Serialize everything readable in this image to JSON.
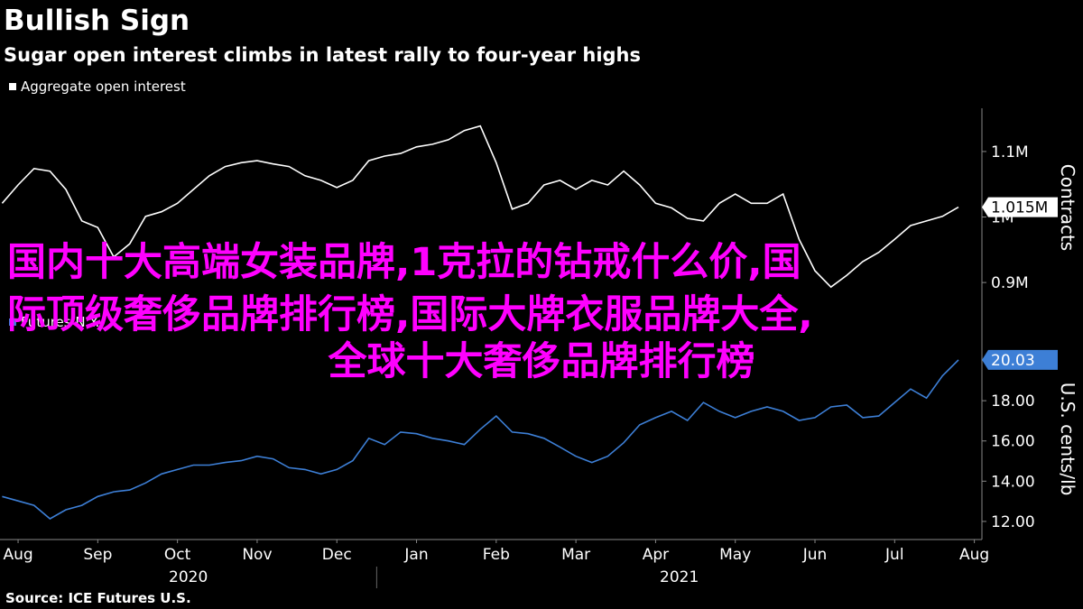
{
  "title": "Bullish Sign",
  "subtitle": "Sugar open interest climbs in latest rally to four-year highs",
  "source": "Source: ICE Futures U.S.",
  "overlay_text": [
    "国内十大高端女装品牌,1克拉的钻戒什么价,国",
    "际顶级奢侈品牌排行榜,国际大牌衣服品牌大全,",
    "全球十大奢侈品牌排行榜"
  ],
  "chart_data": [
    {
      "type": "line",
      "y_axis_label": "Contracts",
      "x": [
        -0.2,
        0,
        0.2,
        0.4,
        0.6,
        0.8,
        1,
        1.2,
        1.4,
        1.6,
        1.8,
        2,
        2.2,
        2.4,
        2.6,
        2.8,
        3,
        3.2,
        3.4,
        3.6,
        3.8,
        4,
        4.2,
        4.4,
        4.6,
        4.8,
        5,
        5.2,
        5.4,
        5.6,
        5.8,
        6,
        6.2,
        6.4,
        6.6,
        6.8,
        7,
        7.2,
        7.4,
        7.6,
        7.8,
        8,
        8.2,
        8.4,
        8.6,
        8.8,
        9,
        9.2,
        9.4,
        9.6,
        9.8,
        10,
        10.2,
        10.4,
        10.6,
        10.8,
        11,
        11.2,
        11.4,
        11.6,
        11.8
      ],
      "xlim": [
        -0.227,
        12.095
      ],
      "ylim": [
        863000,
        1166000
      ],
      "yticks": [
        {
          "value": 900000,
          "label": "0.9M"
        },
        {
          "value": 1000000,
          "label": "1M"
        },
        {
          "value": 1100000,
          "label": "1.1M"
        }
      ],
      "series": [
        {
          "name": "Aggregate open interest",
          "color": "#ffffff",
          "last_value_label": "1.015M",
          "values": [
            1021000,
            1049000,
            1074000,
            1070000,
            1042000,
            994000,
            984000,
            939000,
            959000,
            1001000,
            1008000,
            1021000,
            1042000,
            1063000,
            1077000,
            1083000,
            1086000,
            1081000,
            1077000,
            1063000,
            1056000,
            1045000,
            1056000,
            1086000,
            1093000,
            1097000,
            1107000,
            1111000,
            1118000,
            1132000,
            1139000,
            1083000,
            1012000,
            1021000,
            1049000,
            1056000,
            1042000,
            1056000,
            1049000,
            1070000,
            1049000,
            1021000,
            1014000,
            998000,
            994000,
            1021000,
            1035000,
            1021000,
            1021000,
            1035000,
            966000,
            918000,
            893000,
            911000,
            932000,
            946000,
            966000,
            987000,
            994000,
            1001000,
            1015000
          ]
        }
      ]
    },
    {
      "type": "line",
      "y_axis_label": "U.S. cents/lb",
      "x": [
        -0.2,
        0,
        0.2,
        0.4,
        0.6,
        0.8,
        1,
        1.2,
        1.4,
        1.6,
        1.8,
        2,
        2.2,
        2.4,
        2.6,
        2.8,
        3,
        3.2,
        3.4,
        3.6,
        3.8,
        4,
        4.2,
        4.4,
        4.6,
        4.8,
        5,
        5.2,
        5.4,
        5.6,
        5.8,
        6,
        6.2,
        6.4,
        6.6,
        6.8,
        7,
        7.2,
        7.4,
        7.6,
        7.8,
        8,
        8.2,
        8.4,
        8.6,
        8.8,
        9,
        9.2,
        9.4,
        9.6,
        9.8,
        10,
        10.2,
        10.4,
        10.6,
        10.8,
        11,
        11.2,
        11.4,
        11.6,
        11.8
      ],
      "xlim": [
        -0.227,
        12.095
      ],
      "xticks": [
        {
          "value": 0,
          "label": "Aug"
        },
        {
          "value": 1,
          "label": "Sep"
        },
        {
          "value": 2,
          "label": "Oct"
        },
        {
          "value": 3,
          "label": "Nov"
        },
        {
          "value": 4,
          "label": "Dec"
        },
        {
          "value": 5,
          "label": "Jan"
        },
        {
          "value": 6,
          "label": "Feb"
        },
        {
          "value": 7,
          "label": "Mar"
        },
        {
          "value": 8,
          "label": "Apr"
        },
        {
          "value": 9,
          "label": "May"
        },
        {
          "value": 10,
          "label": "Jun"
        },
        {
          "value": 11,
          "label": "Jul"
        },
        {
          "value": 12,
          "label": "Aug"
        }
      ],
      "years": [
        "2020",
        "2021"
      ],
      "year_break": 4.5,
      "ylim": [
        11.1,
        21.1
      ],
      "yticks": [
        {
          "value": 12,
          "label": "12.00"
        },
        {
          "value": 14,
          "label": "14.00"
        },
        {
          "value": 16,
          "label": "16.00"
        },
        {
          "value": 18,
          "label": "18.00"
        },
        {
          "value": 20,
          "label": "20.00"
        }
      ],
      "series": [
        {
          "name": "Futures N.Y.",
          "color": "#3d7fd6",
          "last_value_label": "20.03",
          "values": [
            13.24,
            13.02,
            12.8,
            12.13,
            12.58,
            12.8,
            13.24,
            13.47,
            13.56,
            13.91,
            14.36,
            14.58,
            14.8,
            14.8,
            14.93,
            15.02,
            15.24,
            15.11,
            14.67,
            14.58,
            14.36,
            14.58,
            15.02,
            16.13,
            15.82,
            16.44,
            16.36,
            16.13,
            16.0,
            15.82,
            16.58,
            17.24,
            16.44,
            16.36,
            16.13,
            15.69,
            15.24,
            14.93,
            15.24,
            15.91,
            16.8,
            17.16,
            17.47,
            17.02,
            17.91,
            17.47,
            17.16,
            17.47,
            17.69,
            17.47,
            17.02,
            17.16,
            17.69,
            17.78,
            17.16,
            17.24,
            17.91,
            18.58,
            18.13,
            19.24,
            20.03
          ]
        }
      ]
    }
  ]
}
